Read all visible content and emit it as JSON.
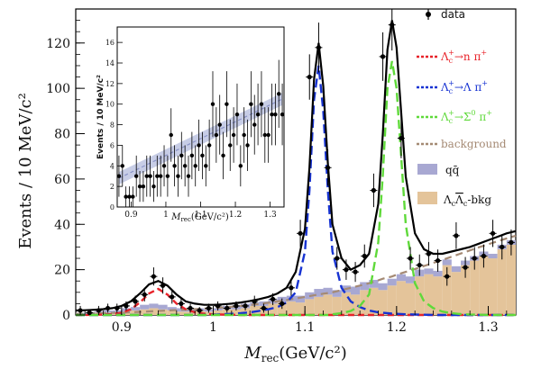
{
  "chart_data": {
    "type": "line",
    "main": {
      "ylabel": "Events / 10 MeV/c²",
      "xlabel_symbol": "M",
      "xlabel_sub": "rec",
      "xlabel_units": "(GeV/c²)",
      "xlim": [
        0.85,
        1.33
      ],
      "ylim": [
        0,
        135
      ],
      "xticks": [
        {
          "v": 0.9,
          "label": "0.9"
        },
        {
          "v": 1.0,
          "label": "1"
        },
        {
          "v": 1.1,
          "label": "1.1"
        },
        {
          "v": 1.2,
          "label": "1.2"
        },
        {
          "v": 1.3,
          "label": "1.3"
        }
      ],
      "yticks": [
        {
          "v": 0,
          "label": "0"
        },
        {
          "v": 20,
          "label": "20"
        },
        {
          "v": 40,
          "label": "40"
        },
        {
          "v": 60,
          "label": "60"
        },
        {
          "v": 80,
          "label": "80"
        },
        {
          "v": 100,
          "label": "100"
        },
        {
          "v": 120,
          "label": "120"
        }
      ],
      "data_points": {
        "x": [
          0.855,
          0.865,
          0.875,
          0.885,
          0.895,
          0.905,
          0.915,
          0.925,
          0.935,
          0.945,
          0.955,
          0.965,
          0.975,
          0.985,
          0.995,
          1.005,
          1.015,
          1.025,
          1.035,
          1.045,
          1.055,
          1.065,
          1.075,
          1.085,
          1.095,
          1.105,
          1.115,
          1.125,
          1.135,
          1.145,
          1.155,
          1.165,
          1.175,
          1.185,
          1.195,
          1.205,
          1.215,
          1.225,
          1.235,
          1.245,
          1.255,
          1.265,
          1.275,
          1.285,
          1.295,
          1.305,
          1.315,
          1.325
        ],
        "y": [
          2,
          1,
          2,
          3,
          3,
          4,
          6,
          9,
          17,
          13,
          8,
          5,
          3,
          2,
          3,
          4,
          3,
          4,
          4,
          6,
          3,
          7,
          5,
          12,
          36,
          105,
          118,
          65,
          25,
          20,
          19,
          26,
          55,
          114,
          128,
          78,
          25,
          22,
          27,
          24,
          17,
          35,
          21,
          25,
          26,
          36,
          30,
          32
        ],
        "err": [
          2,
          1.5,
          2,
          2,
          2,
          2,
          2.5,
          3,
          4,
          3.6,
          3,
          2.3,
          2,
          1.5,
          2,
          2,
          2,
          2,
          2,
          2.5,
          2,
          2.6,
          2.3,
          3.5,
          6,
          10,
          11,
          8,
          5,
          4.5,
          4.4,
          5.1,
          7.4,
          10.7,
          11.3,
          8.8,
          5,
          4.7,
          5.2,
          4.9,
          4.1,
          5.9,
          4.6,
          5,
          5.1,
          6,
          5.5,
          5.7
        ]
      },
      "curves": {
        "x": [
          0.85,
          0.86,
          0.87,
          0.88,
          0.89,
          0.9,
          0.91,
          0.92,
          0.93,
          0.94,
          0.95,
          0.96,
          0.97,
          0.98,
          0.99,
          1.0,
          1.01,
          1.02,
          1.03,
          1.04,
          1.05,
          1.06,
          1.07,
          1.08,
          1.09,
          1.1,
          1.105,
          1.11,
          1.115,
          1.12,
          1.125,
          1.13,
          1.14,
          1.15,
          1.16,
          1.17,
          1.18,
          1.185,
          1.19,
          1.195,
          1.2,
          1.21,
          1.22,
          1.23,
          1.24,
          1.25,
          1.26,
          1.27,
          1.28,
          1.29,
          1.3,
          1.31,
          1.32,
          1.33
        ],
        "lambda_n_pi": [
          0,
          0,
          0.1,
          0.2,
          0.4,
          1,
          2.5,
          5.5,
          9.5,
          11.5,
          9,
          5,
          2.5,
          1.2,
          0.6,
          0.3,
          0.2,
          0.1,
          0,
          0,
          0,
          0,
          0,
          0,
          0,
          0,
          0,
          0,
          0,
          0,
          0,
          0,
          0,
          0,
          0,
          0,
          0,
          0,
          0,
          0,
          0,
          0,
          0,
          0,
          0,
          0,
          0,
          0,
          0,
          0,
          0,
          0,
          0,
          0
        ],
        "lambda_pi": [
          0,
          0,
          0,
          0,
          0,
          0,
          0,
          0,
          0,
          0,
          0,
          0,
          0,
          0,
          0,
          0.1,
          0.3,
          0.5,
          0.8,
          1.2,
          1.8,
          2.5,
          3.5,
          5.5,
          10,
          28,
          55,
          95,
          110,
          90,
          55,
          28,
          12,
          6,
          3.5,
          2,
          1.2,
          1,
          0.8,
          0.6,
          0.5,
          0.3,
          0.2,
          0.1,
          0,
          0,
          0,
          0,
          0,
          0,
          0,
          0,
          0,
          0
        ],
        "sigma0_pi": [
          0,
          0,
          0,
          0,
          0,
          0,
          0,
          0,
          0,
          0,
          0,
          0,
          0,
          0,
          0,
          0,
          0,
          0,
          0,
          0,
          0,
          0,
          0,
          0,
          0,
          0,
          0,
          0,
          0,
          0,
          0,
          0.3,
          0.8,
          1.8,
          4,
          9,
          32,
          62,
          100,
          112,
          100,
          40,
          14,
          6,
          3,
          1.5,
          0.8,
          0.4,
          0.2,
          0.1,
          0,
          0,
          0,
          0
        ],
        "background": [
          0.5,
          0.6,
          0.7,
          0.8,
          0.9,
          1,
          1.2,
          1.4,
          1.6,
          1.8,
          2,
          2.2,
          2.4,
          2.6,
          2.8,
          3,
          3.3,
          3.6,
          4,
          4.4,
          4.9,
          5.4,
          6,
          6.6,
          7.3,
          8,
          8.3,
          8.7,
          9,
          9.4,
          9.7,
          10,
          11,
          12,
          13,
          14,
          15.3,
          16,
          16.5,
          17,
          17.8,
          19,
          20.3,
          21.6,
          23,
          24.3,
          25.7,
          27.1,
          28.5,
          29.9,
          31.2,
          32.5,
          33.8,
          35
        ],
        "total": [
          2,
          2.1,
          2.3,
          2.6,
          3,
          4,
          6,
          9.5,
          13.5,
          15,
          13,
          9,
          6,
          5,
          4.5,
          4.5,
          4.7,
          5,
          5.5,
          6.2,
          7,
          8,
          9.5,
          12,
          19,
          38,
          65,
          104,
          120,
          101,
          67,
          40,
          25,
          20,
          22,
          27,
          49,
          80,
          117,
          130,
          118,
          61,
          36,
          29,
          27,
          27,
          28,
          29,
          30,
          31.5,
          33,
          34.5,
          36,
          37
        ]
      },
      "histograms": {
        "bins_lo": [
          0.85,
          0.86,
          0.87,
          0.88,
          0.89,
          0.9,
          0.91,
          0.92,
          0.93,
          0.94,
          0.95,
          0.96,
          0.97,
          0.98,
          0.99,
          1.0,
          1.01,
          1.02,
          1.03,
          1.04,
          1.05,
          1.06,
          1.07,
          1.08,
          1.09,
          1.1,
          1.11,
          1.12,
          1.13,
          1.14,
          1.15,
          1.16,
          1.17,
          1.18,
          1.19,
          1.2,
          1.21,
          1.22,
          1.23,
          1.24,
          1.25,
          1.26,
          1.27,
          1.28,
          1.29,
          1.3,
          1.31,
          1.32
        ],
        "qqbar": [
          0.5,
          0.5,
          0.5,
          1,
          1,
          1.5,
          1.5,
          2,
          2,
          2,
          1.5,
          1.5,
          1,
          1,
          1,
          1,
          1.5,
          1.5,
          2,
          1.5,
          2,
          2,
          2.5,
          2.5,
          3,
          3,
          3.5,
          3,
          3,
          3,
          3.5,
          3.5,
          3.5,
          3,
          3,
          3,
          3,
          3,
          2.5,
          2.5,
          2.5,
          2.5,
          2,
          2,
          2,
          2,
          2,
          2
        ],
        "lclc_bkg": [
          0.5,
          0.5,
          1,
          1,
          1,
          1.5,
          2,
          2.5,
          3,
          2.5,
          2,
          1.5,
          1.5,
          2,
          1.5,
          2,
          2.5,
          2.5,
          3,
          4,
          4,
          5,
          5.5,
          6,
          5.5,
          7,
          8,
          9,
          8,
          10,
          9,
          11,
          12,
          11,
          13,
          15,
          14,
          17,
          18,
          17,
          22,
          19,
          22,
          24,
          26,
          25,
          29,
          31
        ]
      },
      "legend": {
        "data": "data",
        "bkg_label": "background",
        "qqbar_label": "qq̄",
        "items": [
          {
            "mother": "Λ",
            "sub": "c",
            "sup": "+",
            "rest": "→n π",
            "rest_sup": "+",
            "color": "#e8232a"
          },
          {
            "mother": "Λ",
            "sub": "c",
            "sup": "+",
            "rest": "→Λ π",
            "rest_sup": "+",
            "color": "#1733d2"
          },
          {
            "mother": "Λ",
            "sub": "c",
            "sup": "+",
            "rest": "→Σ",
            "rest_sup2": "0",
            "rest2": " π",
            "rest2_sup": "+",
            "color": "#5fd93a"
          }
        ],
        "lclc": {
          "a": "Λ",
          "a_sub": "c",
          "b": "Λ",
          "b_sub": "c",
          "rest": "-bkg"
        }
      },
      "colors": {
        "total": "#000000",
        "lambda_n_pi": "#e8232a",
        "lambda_pi": "#1733d2",
        "sigma0_pi": "#5fd93a",
        "background": "#a58a74",
        "qqbar": "#a8a8d2",
        "lclc_bkg": "#e4c49a"
      }
    },
    "inset": {
      "ylabel": "Events / 10 MeV/c²",
      "xlabel_symbol": "M",
      "xlabel_sub": "rec",
      "xlabel_units": "(GeV/c²)",
      "xlim": [
        0.86,
        1.34
      ],
      "ylim": [
        0,
        17.5
      ],
      "xticks": [
        {
          "v": 0.9,
          "label": "0.9"
        },
        {
          "v": 1.0,
          "label": "1"
        },
        {
          "v": 1.1,
          "label": "1.1"
        },
        {
          "v": 1.2,
          "label": "1.2"
        },
        {
          "v": 1.3,
          "label": "1.3"
        }
      ],
      "yticks": [
        {
          "v": 0,
          "label": "0"
        },
        {
          "v": 2,
          "label": "2"
        },
        {
          "v": 4,
          "label": "4"
        },
        {
          "v": 6,
          "label": "6"
        },
        {
          "v": 8,
          "label": "8"
        },
        {
          "v": 10,
          "label": "10"
        },
        {
          "v": 12,
          "label": "12"
        },
        {
          "v": 14,
          "label": "14"
        },
        {
          "v": 16,
          "label": "16"
        }
      ],
      "data_points": {
        "x": [
          0.865,
          0.875,
          0.885,
          0.895,
          0.905,
          0.915,
          0.925,
          0.935,
          0.945,
          0.955,
          0.965,
          0.975,
          0.985,
          0.995,
          1.005,
          1.015,
          1.025,
          1.035,
          1.045,
          1.055,
          1.065,
          1.075,
          1.085,
          1.095,
          1.105,
          1.115,
          1.125,
          1.135,
          1.145,
          1.155,
          1.165,
          1.175,
          1.185,
          1.195,
          1.205,
          1.215,
          1.225,
          1.235,
          1.245,
          1.255,
          1.265,
          1.275,
          1.285,
          1.295,
          1.305,
          1.315,
          1.325,
          1.335
        ],
        "y": [
          3,
          4,
          1,
          1,
          1,
          3,
          2,
          2,
          3,
          3,
          2,
          3,
          3,
          4,
          3,
          7,
          4,
          3,
          5,
          4,
          3,
          5,
          4,
          6,
          5,
          4,
          6,
          10,
          7,
          8,
          5,
          10,
          6,
          7,
          9,
          4,
          7,
          6,
          10,
          8,
          9,
          10,
          7,
          7,
          9,
          9,
          11,
          9
        ],
        "err": [
          2,
          2,
          1,
          1,
          1,
          2,
          1.5,
          1.5,
          2,
          2,
          1.5,
          2,
          2,
          2,
          2,
          2.6,
          2,
          2,
          2.3,
          2,
          2,
          2.3,
          2,
          2.5,
          2.3,
          2,
          2.5,
          3.2,
          2.7,
          2.9,
          2.3,
          3.2,
          2.5,
          2.7,
          3,
          2,
          2.7,
          2.5,
          3.2,
          2.9,
          3,
          3.2,
          2.7,
          2.7,
          3,
          3,
          3.3,
          3
        ]
      },
      "fit_band": {
        "x0": 0.865,
        "y0": 2.8,
        "x1": 1.335,
        "y1": 10.5
      }
    }
  }
}
